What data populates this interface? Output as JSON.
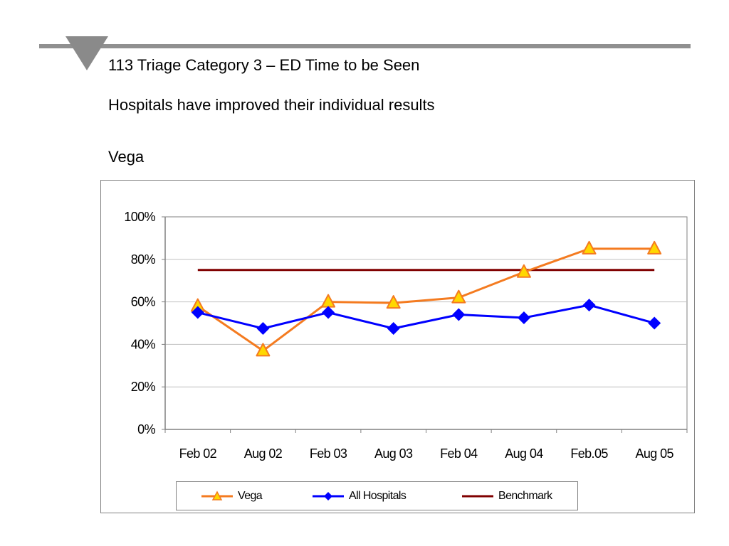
{
  "slide": {
    "title": "113 Triage Category 3 – ED Time to be Seen",
    "subtitle": "Hospitals have improved their individual results",
    "hospital": "Vega"
  },
  "colors": {
    "vega_line": "#F47B20",
    "vega_marker": "#FFD700",
    "all_hospitals": "#0000FF",
    "benchmark": "#800000",
    "rule": "#909090",
    "axis": "#808080",
    "grid": "#C0C0C0"
  },
  "chart_data": {
    "type": "line",
    "categories": [
      "Feb 02",
      "Aug 02",
      "Feb 03",
      "Aug 03",
      "Feb 04",
      "Aug 04",
      "Feb.05",
      "Aug 05"
    ],
    "series": [
      {
        "name": "Vega",
        "values": [
          58,
          37,
          60,
          59.5,
          62,
          74,
          85,
          85
        ],
        "marker": "triangle"
      },
      {
        "name": "All Hospitals",
        "values": [
          55,
          47.5,
          55,
          47.5,
          54,
          52.5,
          58.5,
          50
        ],
        "marker": "diamond"
      },
      {
        "name": "Benchmark",
        "values": [
          75,
          75,
          75,
          75,
          75,
          75,
          75,
          75
        ],
        "marker": "none"
      }
    ],
    "y_ticks": [
      "0%",
      "20%",
      "40%",
      "60%",
      "80%",
      "100%"
    ],
    "ylim": [
      0,
      100
    ],
    "grid": true,
    "legend_position": "bottom"
  }
}
